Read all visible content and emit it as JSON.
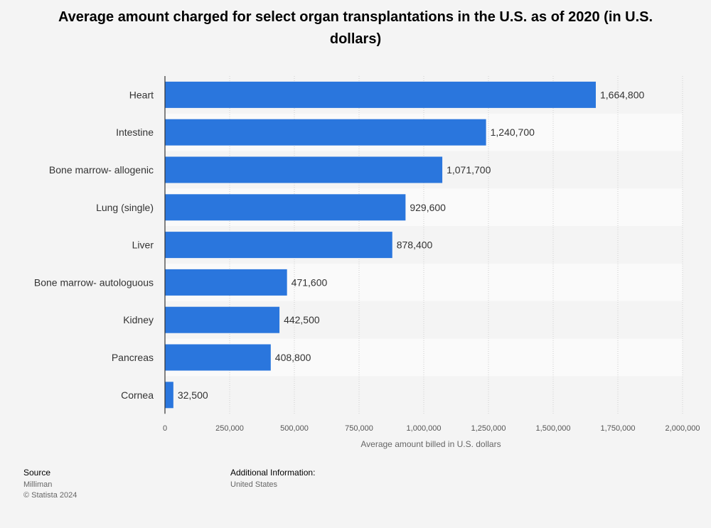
{
  "title": "Average amount charged for select organ transplantations in the U.S. as of 2020 (in U.S. dollars)",
  "chart_data": {
    "type": "bar",
    "orientation": "horizontal",
    "title": "Average amount charged for select organ transplantations in the U.S. as of 2020 (in U.S. dollars)",
    "categories": [
      "Heart",
      "Intestine",
      "Bone marrow- allogenic",
      "Lung (single)",
      "Liver",
      "Bone marrow- autologuous",
      "Kidney",
      "Pancreas",
      "Cornea"
    ],
    "values": [
      1664800,
      1240700,
      1071700,
      929600,
      878400,
      471600,
      442500,
      408800,
      32500
    ],
    "value_labels": [
      "1,664,800",
      "1,240,700",
      "1,071,700",
      "929,600",
      "878,400",
      "471,600",
      "442,500",
      "408,800",
      "32,500"
    ],
    "xlim": [
      0,
      2000000
    ],
    "ticks": [
      0,
      250000,
      500000,
      750000,
      1000000,
      1250000,
      1500000,
      1750000,
      2000000
    ],
    "tick_labels": [
      "0",
      "250,000",
      "500,000",
      "750,000",
      "1,000,000",
      "1,250,000",
      "1,500,000",
      "1,750,000",
      "2,000,000"
    ],
    "xlabel": "Average amount billed in U.S. dollars",
    "ylabel": "",
    "grid": true,
    "bar_color": "#2a76dd"
  },
  "footer": {
    "source_heading": "Source",
    "source_lines": [
      "Milliman",
      "© Statista 2024"
    ],
    "info_heading": "Additional Information:",
    "info_lines": [
      "United States"
    ]
  }
}
